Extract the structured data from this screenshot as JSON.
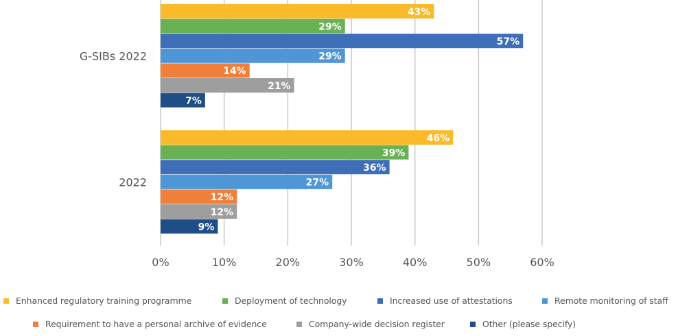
{
  "chart_data": {
    "type": "bar",
    "orientation": "horizontal",
    "title": "",
    "xlabel": "",
    "ylabel": "",
    "xlim": [
      0,
      60
    ],
    "x_ticks": [
      0,
      10,
      20,
      30,
      40,
      50,
      60
    ],
    "x_tick_labels": [
      "0%",
      "10%",
      "20%",
      "30%",
      "40%",
      "50%",
      "60%"
    ],
    "grid": "vertical",
    "legend_position": "bottom",
    "categories": [
      "G-SIBs 2022",
      "2022"
    ],
    "series": [
      {
        "name": "Enhanced regulatory training programme",
        "color": "#FBBA2A",
        "values": [
          43,
          46
        ],
        "labels": [
          "43%",
          "46%"
        ]
      },
      {
        "name": "Deployment of technology",
        "color": "#6AB155",
        "values": [
          29,
          39
        ],
        "labels": [
          "29%",
          "39%"
        ]
      },
      {
        "name": "Increased use of attestations",
        "color": "#3E6EB8",
        "values": [
          57,
          36
        ],
        "labels": [
          "57%",
          "36%"
        ]
      },
      {
        "name": "Remote monitoring of staff",
        "color": "#4F96D6",
        "values": [
          29,
          27
        ],
        "labels": [
          "29%",
          "27%"
        ]
      },
      {
        "name": "Requirement to have a personal archive of evidence",
        "color": "#F07F3A",
        "values": [
          14,
          12
        ],
        "labels": [
          "14%",
          "12%"
        ]
      },
      {
        "name": "Company-wide decision register",
        "color": "#9E9E9E",
        "values": [
          21,
          12
        ],
        "labels": [
          "21%",
          "12%"
        ]
      },
      {
        "name": "Other (please specify)",
        "color": "#1F4E86",
        "values": [
          7,
          9
        ],
        "labels": [
          "7%",
          "9%"
        ]
      }
    ],
    "gridline_color": "#C8C8C8"
  }
}
